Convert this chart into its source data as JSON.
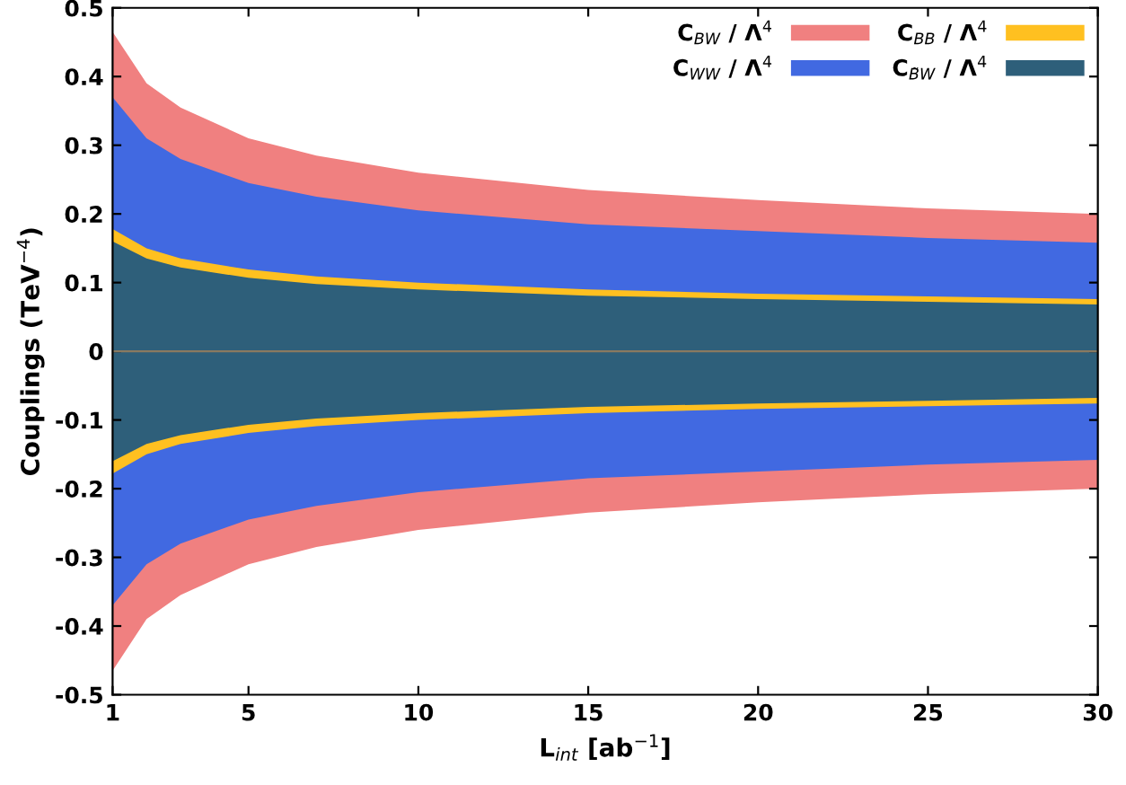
{
  "chart_data": {
    "type": "area",
    "xlabel": "L$_{int}$ [ab$^{−1}$]",
    "ylabel": "Couplings (TeV$^{−4}$)",
    "x": [
      1,
      2,
      3,
      5,
      7,
      10,
      15,
      20,
      25,
      30
    ],
    "series": [
      {
        "name": "C$_{BW}$ / Λ$^{4}$",
        "color": "#f08080",
        "values": [
          0.465,
          0.39,
          0.355,
          0.31,
          0.285,
          0.26,
          0.235,
          0.22,
          0.208,
          0.2
        ]
      },
      {
        "color": "#f08080",
        "values": [
          -0.465,
          -0.39,
          -0.355,
          -0.31,
          -0.285,
          -0.26,
          -0.235,
          -0.22,
          -0.208,
          -0.2
        ]
      },
      {
        "name": "C$_{WW}$ / Λ$^{4}$",
        "color": "#4169e1",
        "values": [
          0.37,
          0.31,
          0.28,
          0.245,
          0.225,
          0.205,
          0.185,
          0.175,
          0.165,
          0.158
        ]
      },
      {
        "color": "#4169e1",
        "values": [
          -0.37,
          -0.31,
          -0.28,
          -0.245,
          -0.225,
          -0.205,
          -0.185,
          -0.175,
          -0.165,
          -0.158
        ]
      },
      {
        "name": "C$_{BB}$ / Λ$^{4}$",
        "color": "#ffc020",
        "values": [
          0.178,
          0.15,
          0.135,
          0.119,
          0.109,
          0.1,
          0.09,
          0.084,
          0.08,
          0.076
        ]
      },
      {
        "color": "#ffc020",
        "values": [
          -0.178,
          -0.15,
          -0.135,
          -0.119,
          -0.109,
          -0.1,
          -0.09,
          -0.084,
          -0.08,
          -0.076
        ]
      },
      {
        "name": "C$_{B̃W}$ / Λ$^{4}$",
        "color": "#2e5f7a",
        "values": [
          0.16,
          0.135,
          0.122,
          0.107,
          0.098,
          0.09,
          0.081,
          0.076,
          0.072,
          0.068
        ]
      },
      {
        "color": "#2e5f7a",
        "values": [
          -0.16,
          -0.135,
          -0.122,
          -0.107,
          -0.098,
          -0.09,
          -0.081,
          -0.076,
          -0.072,
          -0.068
        ]
      }
    ],
    "xlim": [
      1,
      30
    ],
    "xticks": [
      1,
      5,
      10,
      15,
      20,
      25,
      30
    ],
    "ylim": [
      -0.5,
      0.5
    ],
    "yticks": [
      -0.5,
      -0.4,
      -0.3,
      -0.2,
      -0.1,
      0,
      0.1,
      0.2,
      0.3,
      0.4,
      0.5
    ],
    "ref_lines": [
      {
        "axis": "y",
        "value": 0,
        "color": "#8a7a60"
      }
    ],
    "legend": "top right",
    "grid": false
  }
}
